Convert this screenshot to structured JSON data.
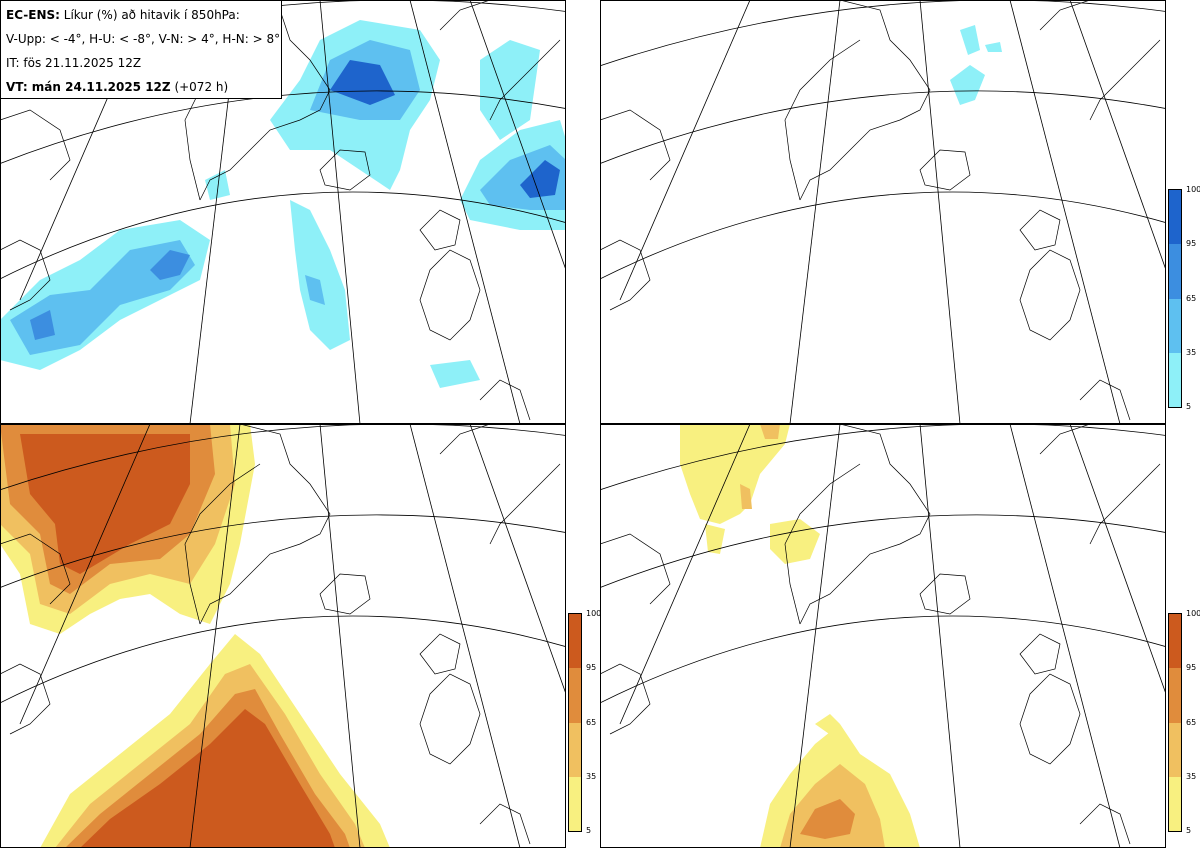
{
  "header": {
    "model": "EC-ENS:",
    "title": "Líkur (%) að hitavik í 850hPa:",
    "legend_line": "V-Upp: < -4°, H-U: < -8°, V-N: > 4°, H-N: > 8°",
    "initial_time": "IT: fös 21.11.2025 12Z",
    "valid_label": "VT: mán 24.11.2025 12Z",
    "valid_offset": "(+072 h)"
  },
  "colorbar": {
    "ticks": [
      "100",
      "95",
      "65",
      "35",
      "5"
    ],
    "cold_colors": [
      "#1e64cc",
      "#3c8ee0",
      "#5ec0f0",
      "#8ef0f8",
      "#c8fafc"
    ],
    "warm_colors": [
      "#cc5a1e",
      "#e08c3c",
      "#f0c060",
      "#f8f080",
      "#fcfcb0"
    ]
  },
  "panels": [
    {
      "name": "cold-4"
    },
    {
      "name": "cold-8"
    },
    {
      "name": "warm-4"
    },
    {
      "name": "warm-8"
    }
  ]
}
